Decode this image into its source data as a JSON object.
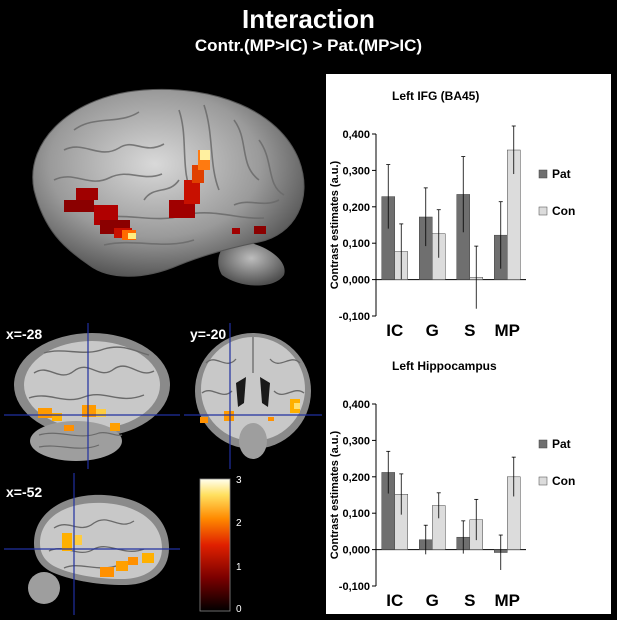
{
  "figure": {
    "title": "Interaction",
    "subtitle": "Contr.(MP>IC) > Pat.(MP>IC)"
  },
  "slices": {
    "coronal_left": "x=-28",
    "coronal_right": "y=-20",
    "sagittal": "x=-52"
  },
  "colorbar": {
    "ticks": [
      "3",
      "2",
      "1",
      "0"
    ]
  },
  "colors": {
    "pat": "#6f6f6f",
    "con": "#dcdcdc",
    "activation_low": "#8b0000",
    "activation_high": "#ffffe0"
  },
  "chart_data": [
    {
      "type": "bar",
      "title": "Left IFG (BA45)",
      "ylabel": "Contrast estimates (a.u.)",
      "categories": [
        "IC",
        "G",
        "S",
        "MP"
      ],
      "ylim": [
        -0.1,
        0.4
      ],
      "yticks": [
        "0,400",
        "0,300",
        "0,200",
        "0,100",
        "0,000",
        "-0,100"
      ],
      "legend": "right",
      "series": [
        {
          "name": "Pat",
          "values": [
            0.228,
            0.172,
            0.234,
            0.122
          ],
          "errors": [
            0.088,
            0.08,
            0.104,
            0.092
          ]
        },
        {
          "name": "Con",
          "values": [
            0.077,
            0.126,
            0.006,
            0.356
          ],
          "errors": [
            0.076,
            0.066,
            0.086,
            0.066
          ]
        }
      ]
    },
    {
      "type": "bar",
      "title": "Left Hippocampus",
      "ylabel": "Contrast estimates (a.u.)",
      "categories": [
        "IC",
        "G",
        "S",
        "MP"
      ],
      "ylim": [
        -0.1,
        0.4
      ],
      "yticks": [
        "0,400",
        "0,300",
        "0,200",
        "0,100",
        "0,000",
        "-0,100"
      ],
      "legend": "right",
      "series": [
        {
          "name": "Pat",
          "values": [
            0.212,
            0.027,
            0.034,
            -0.008
          ],
          "errors": [
            0.058,
            0.04,
            0.045,
            0.048
          ]
        },
        {
          "name": "Con",
          "values": [
            0.152,
            0.121,
            0.082,
            0.2
          ],
          "errors": [
            0.056,
            0.035,
            0.056,
            0.054
          ]
        }
      ]
    }
  ]
}
